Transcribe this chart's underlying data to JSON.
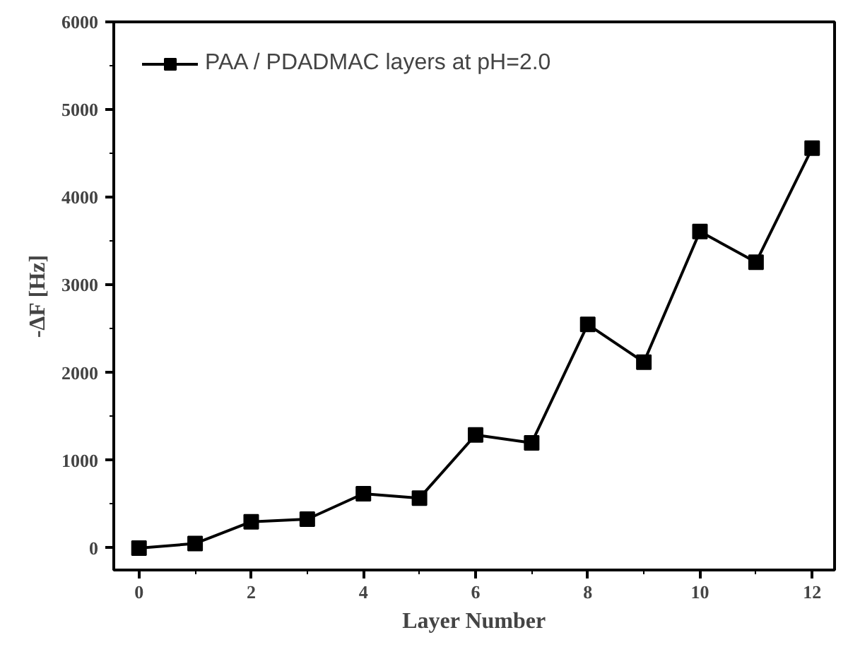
{
  "chart_data": {
    "type": "line",
    "xlabel": "Layer Number",
    "ylabel": "-ΔF [Hz]",
    "x": [
      0,
      1,
      2,
      3,
      4,
      5,
      6,
      7,
      8,
      9,
      10,
      11,
      12
    ],
    "series": [
      {
        "name": "PAA / PDADMAC layers at pH=2.0",
        "color": "#000000",
        "values": [
          0,
          52,
          300,
          330,
          620,
          570,
          1290,
          1200,
          2550,
          2120,
          3610,
          3260,
          4560
        ]
      }
    ],
    "xlim": [
      -0.45,
      12.4
    ],
    "ylim": [
      -250,
      6000
    ],
    "xticks": [
      0,
      {
        "value": 1,
        "label": null
      },
      2,
      {
        "value": 3,
        "label": null
      },
      4,
      {
        "value": 5,
        "label": null
      },
      6,
      {
        "value": 7,
        "label": null
      },
      8,
      {
        "value": 9,
        "label": null
      },
      10,
      {
        "value": 11,
        "label": null
      },
      12
    ],
    "yticks": [
      0,
      {
        "value": 500,
        "label": null
      },
      1000,
      {
        "value": 1500,
        "label": null
      },
      2000,
      {
        "value": 2500,
        "label": null
      },
      3000,
      {
        "value": 3500,
        "label": null
      },
      4000,
      {
        "value": 4500,
        "label": null
      },
      5000,
      {
        "value": 5500,
        "label": null
      },
      6000
    ],
    "marker": "square",
    "line_style": "solid",
    "grid": false,
    "legend": "top left"
  }
}
